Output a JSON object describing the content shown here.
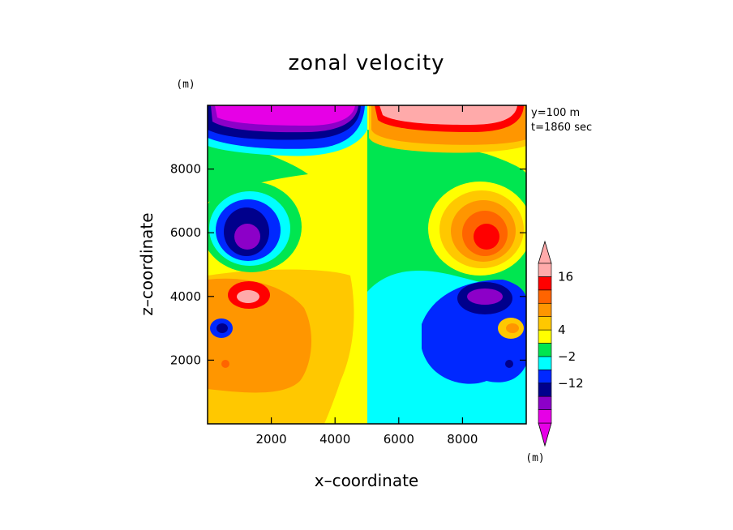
{
  "chart_data": {
    "type": "heatmap",
    "title": "zonal velocity",
    "xlabel": "x–coordinate",
    "ylabel": "z–coordinate",
    "y_unit": "(m)",
    "colorbar_unit": "(m)",
    "annotations": [
      "y=100 m",
      "t=1860 sec"
    ],
    "xlim": [
      0,
      10000
    ],
    "ylim": [
      0,
      10000
    ],
    "x_ticks": [
      2000,
      4000,
      6000,
      8000
    ],
    "y_ticks": [
      2000,
      4000,
      6000,
      8000
    ],
    "x_tick_labels": [
      "2000",
      "4000",
      "6000",
      "8000"
    ],
    "y_tick_labels": [
      "2000",
      "4000",
      "6000",
      "8000"
    ],
    "colorbar": {
      "colors": [
        "#e600e6",
        "#8c00c8",
        "#00008c",
        "#0028ff",
        "#00ffff",
        "#00e650",
        "#ffff00",
        "#ffc800",
        "#ff9600",
        "#ff6400",
        "#ff0000",
        "#ffaaaa"
      ],
      "labeled_levels": [
        "16",
        "4",
        "−2",
        "−12"
      ]
    },
    "features": [
      {
        "x": 1300,
        "z": 5950,
        "value": -12,
        "color": "#8c00c8"
      },
      {
        "x": 8700,
        "z": 5950,
        "value": 16,
        "color": "#ff0000"
      },
      {
        "x": 1400,
        "z": 4100,
        "value": 16,
        "color": "#ff0000"
      },
      {
        "x": 8600,
        "z": 4100,
        "value": -12,
        "color": "#8c00c8"
      },
      {
        "x": 500,
        "z": 3000,
        "value": -12,
        "color": "#0028ff"
      },
      {
        "x": 9500,
        "z": 3000,
        "value": 4,
        "color": "#ffc800"
      },
      {
        "x": 2500,
        "z": 9300,
        "value": -16,
        "color": "#e600e6"
      },
      {
        "x": 7500,
        "z": 9300,
        "value": 16,
        "color": "#ffaaaa"
      }
    ]
  }
}
